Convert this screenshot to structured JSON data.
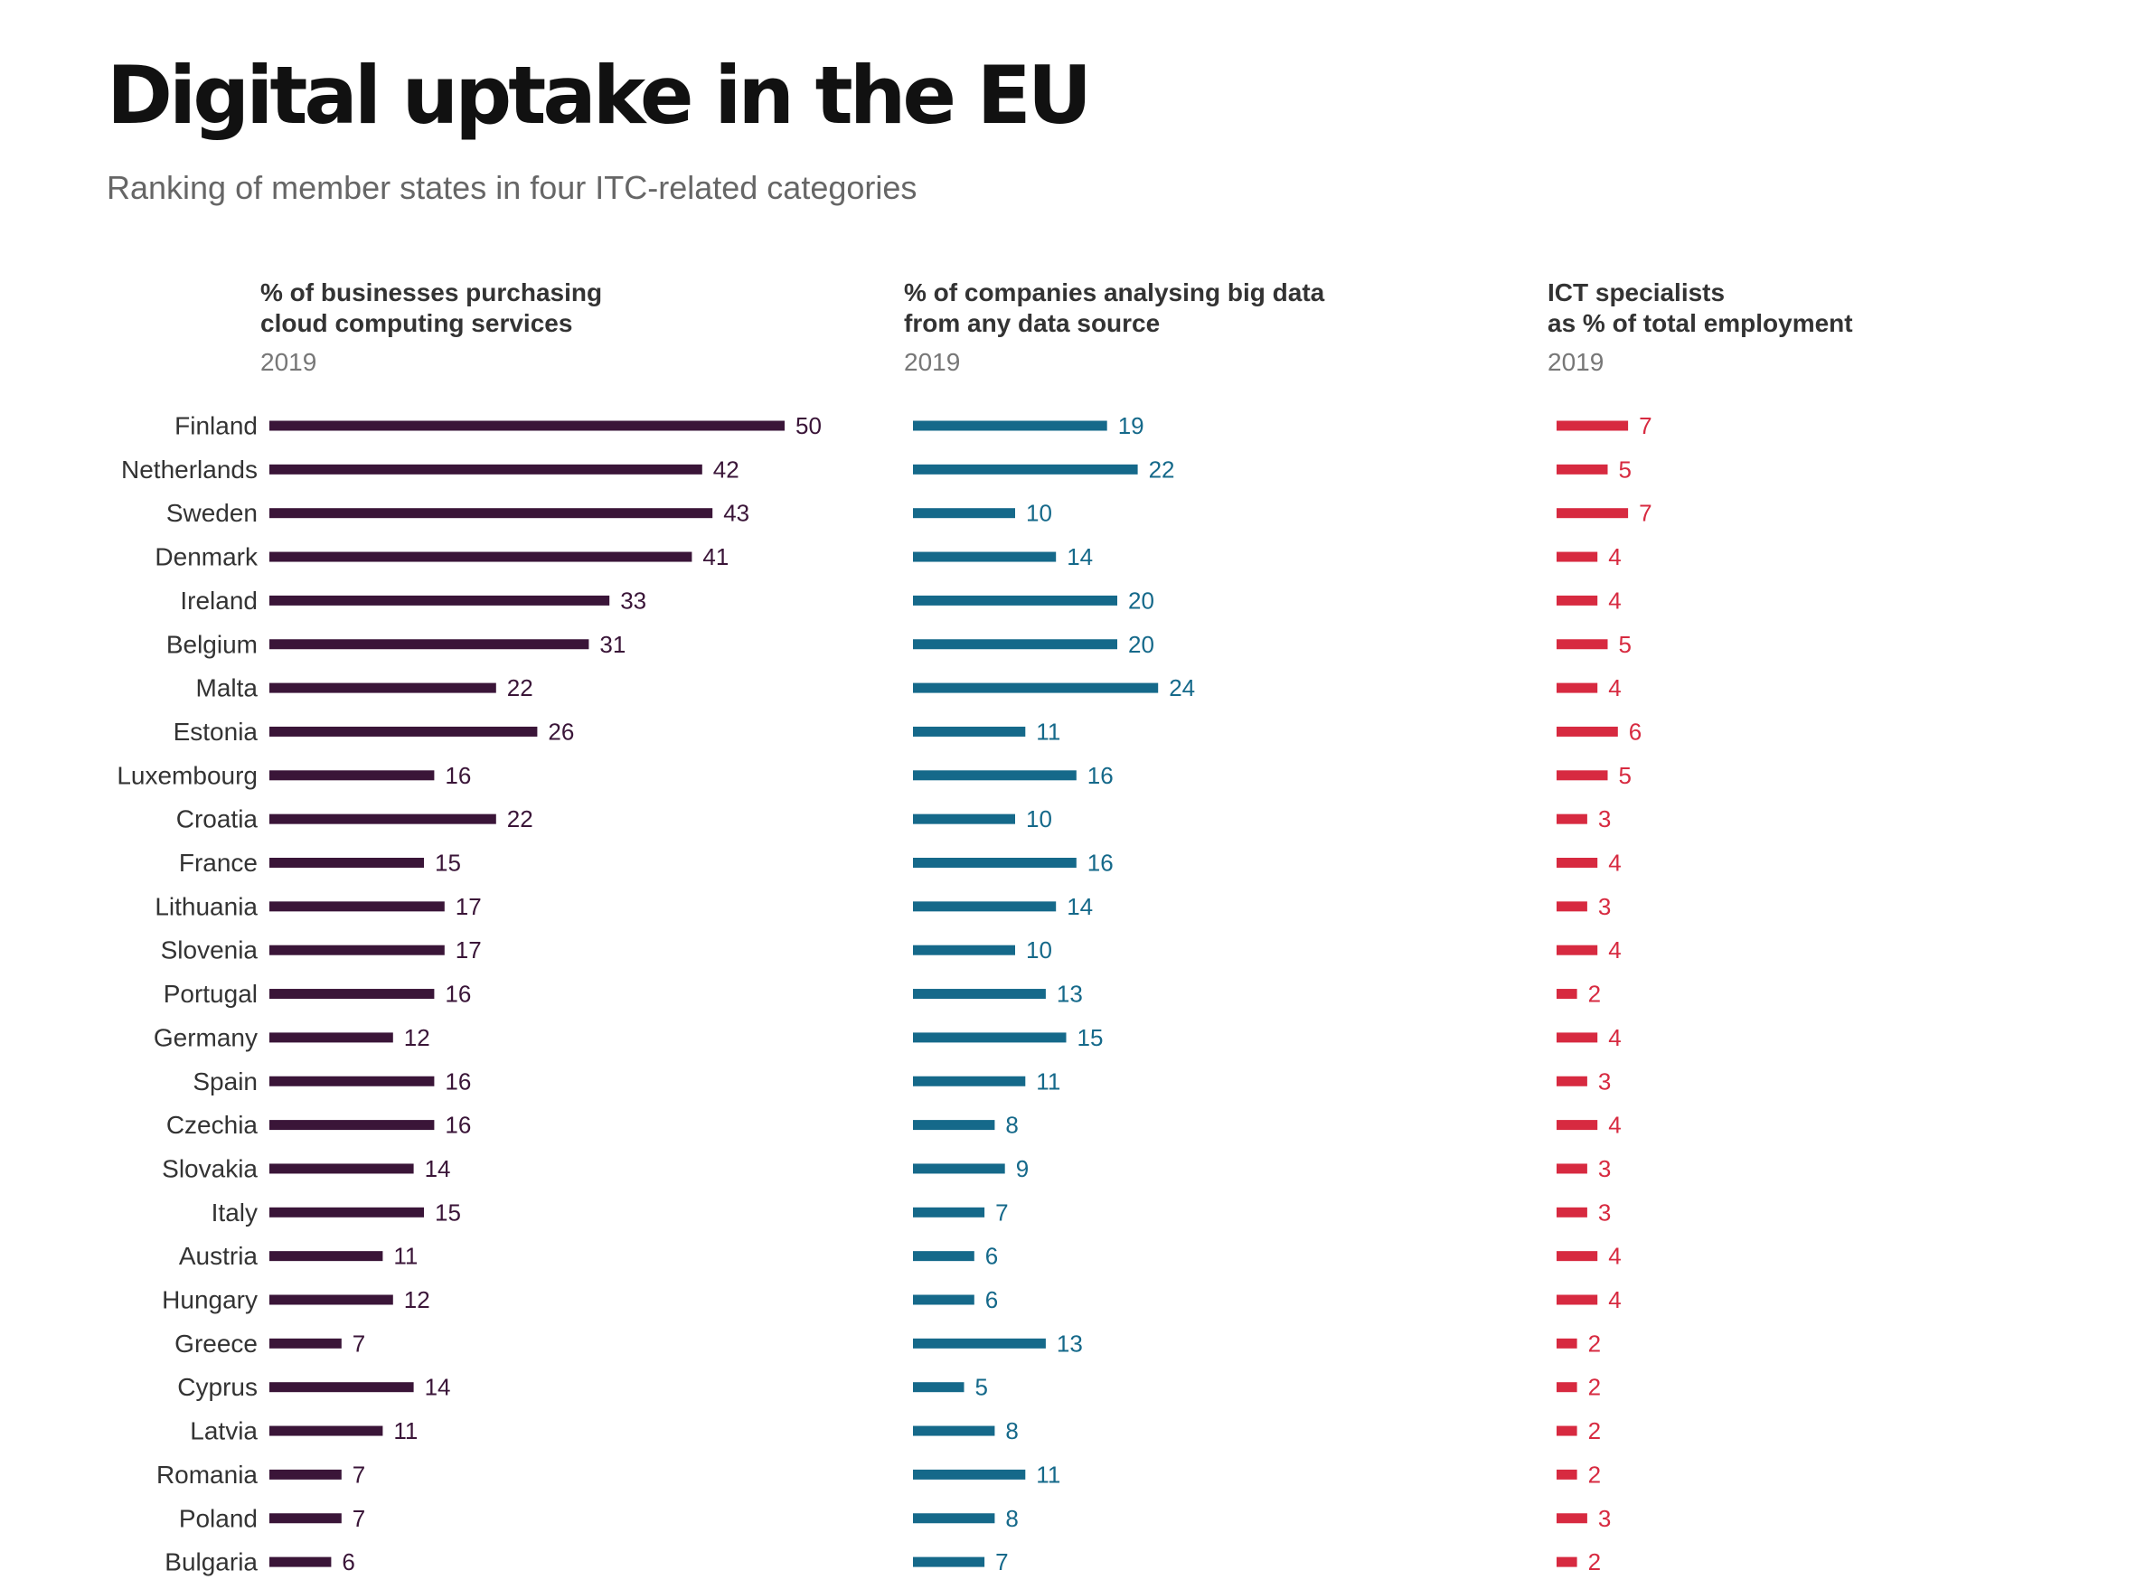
{
  "title": "Digital uptake in the EU",
  "subtitle": "Ranking of member states in four ITC-related categories",
  "chart_data": {
    "type": "bar",
    "orientation": "horizontal",
    "categories": [
      "Finland",
      "Netherlands",
      "Sweden",
      "Denmark",
      "Ireland",
      "Belgium",
      "Malta",
      "Estonia",
      "Luxembourg",
      "Croatia",
      "France",
      "Lithuania",
      "Slovenia",
      "Portugal",
      "Germany",
      "Spain",
      "Czechia",
      "Slovakia",
      "Italy",
      "Austria",
      "Hungary",
      "Greece",
      "Cyprus",
      "Latvia",
      "Romania",
      "Poland",
      "Bulgaria"
    ],
    "series": [
      {
        "title_lines": [
          "% of businesses purchasing",
          "cloud computing services"
        ],
        "year": "2019",
        "color": "#3a1538",
        "values": [
          50,
          42,
          43,
          41,
          33,
          31,
          22,
          26,
          16,
          22,
          15,
          17,
          17,
          16,
          12,
          16,
          16,
          14,
          15,
          11,
          12,
          7,
          14,
          11,
          7,
          7,
          6
        ]
      },
      {
        "title_lines": [
          "% of companies analysing big data",
          "from any data source"
        ],
        "year": "2019",
        "color": "#15698a",
        "values": [
          19,
          22,
          10,
          14,
          20,
          20,
          24,
          11,
          16,
          10,
          16,
          14,
          10,
          13,
          15,
          11,
          8,
          9,
          7,
          6,
          6,
          13,
          5,
          8,
          11,
          8,
          7
        ]
      },
      {
        "title_lines": [
          "ICT specialists",
          "as % of total employment"
        ],
        "year": "2019",
        "color": "#d72a40",
        "values": [
          7,
          5,
          7,
          4,
          4,
          5,
          4,
          6,
          5,
          3,
          4,
          3,
          4,
          2,
          4,
          3,
          4,
          3,
          3,
          4,
          4,
          2,
          2,
          2,
          2,
          3,
          2
        ]
      }
    ]
  }
}
